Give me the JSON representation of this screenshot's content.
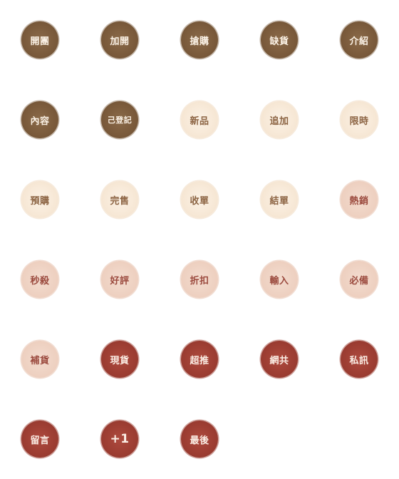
{
  "colors": {
    "brown": "#7a5a3b",
    "cream": "#f6e6d3",
    "pink": "#edcfbf",
    "red": "#9c3d32"
  },
  "stickers": [
    {
      "label": "開團",
      "style": "brown"
    },
    {
      "label": "加開",
      "style": "brown"
    },
    {
      "label": "搶購",
      "style": "brown"
    },
    {
      "label": "缺貨",
      "style": "brown"
    },
    {
      "label": "介紹",
      "style": "brown"
    },
    {
      "label": "內容",
      "style": "brown"
    },
    {
      "label": "己登記",
      "style": "brown"
    },
    {
      "label": "新品",
      "style": "cream"
    },
    {
      "label": "追加",
      "style": "cream"
    },
    {
      "label": "限時",
      "style": "cream"
    },
    {
      "label": "預購",
      "style": "cream"
    },
    {
      "label": "完售",
      "style": "cream"
    },
    {
      "label": "收單",
      "style": "cream"
    },
    {
      "label": "結單",
      "style": "cream"
    },
    {
      "label": "熱銷",
      "style": "pink"
    },
    {
      "label": "秒殺",
      "style": "pink"
    },
    {
      "label": "好評",
      "style": "pink"
    },
    {
      "label": "折扣",
      "style": "pink"
    },
    {
      "label": "輸入",
      "style": "pink"
    },
    {
      "label": "必備",
      "style": "pink"
    },
    {
      "label": "補貨",
      "style": "pink"
    },
    {
      "label": "現貨",
      "style": "red"
    },
    {
      "label": "超推",
      "style": "red"
    },
    {
      "label": "網共",
      "style": "red"
    },
    {
      "label": "私訊",
      "style": "red"
    },
    {
      "label": "留言",
      "style": "red"
    },
    {
      "label": "+1",
      "style": "red"
    },
    {
      "label": "最後",
      "style": "red"
    }
  ]
}
